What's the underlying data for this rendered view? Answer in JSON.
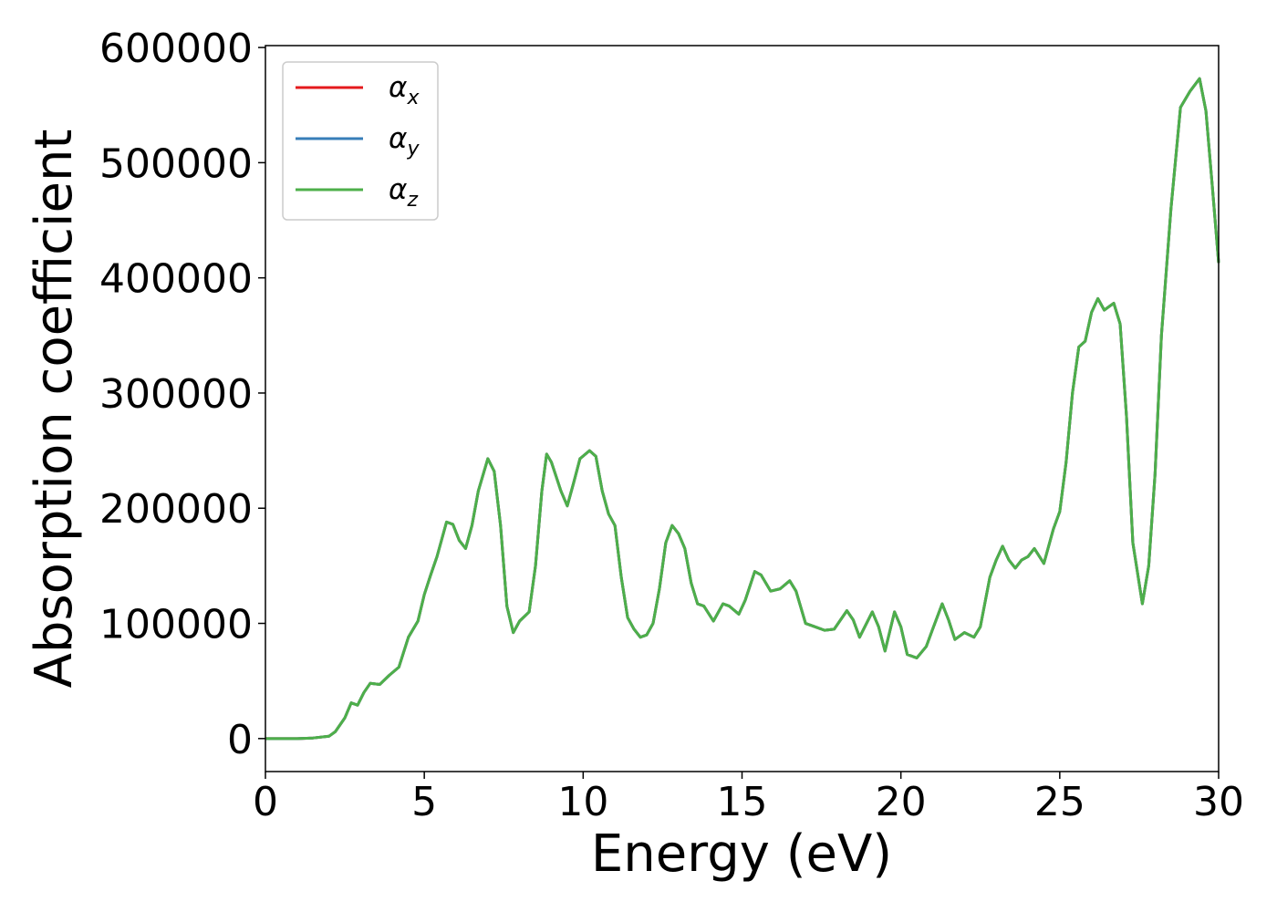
{
  "chart_data": {
    "type": "line",
    "xlabel": "Energy (eV)",
    "ylabel": "Absorption coefficient",
    "x": [
      0,
      1,
      1.5,
      2,
      2.2,
      2.5,
      2.7,
      2.9,
      3.1,
      3.3,
      3.6,
      3.9,
      4.2,
      4.5,
      4.8,
      5.0,
      5.2,
      5.4,
      5.7,
      5.9,
      6.1,
      6.3,
      6.5,
      6.7,
      7.0,
      7.2,
      7.4,
      7.6,
      7.8,
      8.0,
      8.3,
      8.5,
      8.7,
      8.85,
      9.0,
      9.3,
      9.5,
      9.7,
      9.9,
      10.2,
      10.4,
      10.6,
      10.8,
      11.0,
      11.2,
      11.4,
      11.6,
      11.8,
      12.0,
      12.2,
      12.4,
      12.6,
      12.8,
      13.0,
      13.2,
      13.4,
      13.6,
      13.8,
      14.1,
      14.4,
      14.6,
      14.9,
      15.1,
      15.4,
      15.6,
      15.9,
      16.2,
      16.5,
      16.7,
      17.0,
      17.3,
      17.6,
      17.9,
      18.3,
      18.5,
      18.7,
      19.1,
      19.3,
      19.5,
      19.8,
      20.0,
      20.2,
      20.5,
      20.8,
      21.0,
      21.3,
      21.5,
      21.7,
      22.0,
      22.3,
      22.5,
      22.8,
      23.0,
      23.2,
      23.4,
      23.6,
      23.8,
      24.0,
      24.2,
      24.5,
      24.8,
      25.0,
      25.2,
      25.4,
      25.6,
      25.8,
      26.0,
      26.2,
      26.4,
      26.7,
      26.9,
      27.1,
      27.3,
      27.6,
      27.8,
      28.0,
      28.2,
      28.5,
      28.8,
      29.1,
      29.4,
      29.6,
      29.8,
      30.0
    ],
    "series": [
      {
        "name": "αx",
        "color": "#e41a1c",
        "values": [
          0,
          0,
          500,
          2000,
          6000,
          18000,
          31000,
          29000,
          40000,
          48000,
          47000,
          55000,
          62000,
          88000,
          102000,
          125000,
          142000,
          158000,
          188000,
          186000,
          172000,
          165000,
          185000,
          215000,
          243000,
          232000,
          185000,
          115000,
          92000,
          102000,
          110000,
          150000,
          215000,
          247000,
          240000,
          215000,
          202000,
          222000,
          243000,
          250000,
          245000,
          215000,
          195000,
          185000,
          140000,
          105000,
          95000,
          88000,
          90000,
          100000,
          130000,
          170000,
          185000,
          178000,
          165000,
          135000,
          117000,
          115000,
          102000,
          117000,
          115000,
          108000,
          120000,
          145000,
          142000,
          128000,
          130000,
          137000,
          128000,
          100000,
          97000,
          94000,
          95000,
          111000,
          103000,
          88000,
          110000,
          97000,
          76000,
          110000,
          97000,
          73000,
          70000,
          80000,
          95000,
          117000,
          103000,
          86000,
          92000,
          88000,
          97000,
          140000,
          155000,
          167000,
          155000,
          148000,
          155000,
          158000,
          165000,
          152000,
          182000,
          197000,
          240000,
          300000,
          340000,
          345000,
          370000,
          382000,
          372000,
          378000,
          360000,
          280000,
          170000,
          117000,
          150000,
          230000,
          350000,
          460000,
          548000,
          562000,
          573000,
          545000,
          480000,
          413000
        ]
      },
      {
        "name": "αy",
        "color": "#377eb8",
        "values": [
          0,
          0,
          500,
          2000,
          6000,
          18000,
          31000,
          29000,
          40000,
          48000,
          47000,
          55000,
          62000,
          88000,
          102000,
          125000,
          142000,
          158000,
          188000,
          186000,
          172000,
          165000,
          185000,
          215000,
          243000,
          232000,
          185000,
          115000,
          92000,
          102000,
          110000,
          150000,
          215000,
          247000,
          240000,
          215000,
          202000,
          222000,
          243000,
          250000,
          245000,
          215000,
          195000,
          185000,
          140000,
          105000,
          95000,
          88000,
          90000,
          100000,
          130000,
          170000,
          185000,
          178000,
          165000,
          135000,
          117000,
          115000,
          102000,
          117000,
          115000,
          108000,
          120000,
          145000,
          142000,
          128000,
          130000,
          137000,
          128000,
          100000,
          97000,
          94000,
          95000,
          111000,
          103000,
          88000,
          110000,
          97000,
          76000,
          110000,
          97000,
          73000,
          70000,
          80000,
          95000,
          117000,
          103000,
          86000,
          92000,
          88000,
          97000,
          140000,
          155000,
          167000,
          155000,
          148000,
          155000,
          158000,
          165000,
          152000,
          182000,
          197000,
          240000,
          300000,
          340000,
          345000,
          370000,
          382000,
          372000,
          378000,
          360000,
          280000,
          170000,
          117000,
          150000,
          230000,
          350000,
          460000,
          548000,
          562000,
          573000,
          545000,
          480000,
          413000
        ]
      },
      {
        "name": "αz",
        "color": "#4daf4a",
        "values": [
          0,
          0,
          500,
          2000,
          6000,
          18000,
          31000,
          29000,
          40000,
          48000,
          47000,
          55000,
          62000,
          88000,
          102000,
          125000,
          142000,
          158000,
          188000,
          186000,
          172000,
          165000,
          185000,
          215000,
          243000,
          232000,
          185000,
          115000,
          92000,
          102000,
          110000,
          150000,
          215000,
          247000,
          240000,
          215000,
          202000,
          222000,
          243000,
          250000,
          245000,
          215000,
          195000,
          185000,
          140000,
          105000,
          95000,
          88000,
          90000,
          100000,
          130000,
          170000,
          185000,
          178000,
          165000,
          135000,
          117000,
          115000,
          102000,
          117000,
          115000,
          108000,
          120000,
          145000,
          142000,
          128000,
          130000,
          137000,
          128000,
          100000,
          97000,
          94000,
          95000,
          111000,
          103000,
          88000,
          110000,
          97000,
          76000,
          110000,
          97000,
          73000,
          70000,
          80000,
          95000,
          117000,
          103000,
          86000,
          92000,
          88000,
          97000,
          140000,
          155000,
          167000,
          155000,
          148000,
          155000,
          158000,
          165000,
          152000,
          182000,
          197000,
          240000,
          300000,
          340000,
          345000,
          370000,
          382000,
          372000,
          378000,
          360000,
          280000,
          170000,
          117000,
          150000,
          230000,
          350000,
          460000,
          548000,
          562000,
          573000,
          545000,
          480000,
          413000
        ]
      }
    ],
    "xlim": [
      0,
      30
    ],
    "xticks": [
      0,
      5,
      10,
      15,
      20,
      25,
      30
    ],
    "ylim": [
      -28650,
      601650
    ],
    "yticks": [
      0,
      100000,
      200000,
      300000,
      400000,
      500000,
      600000
    ],
    "legend": "upper left"
  }
}
